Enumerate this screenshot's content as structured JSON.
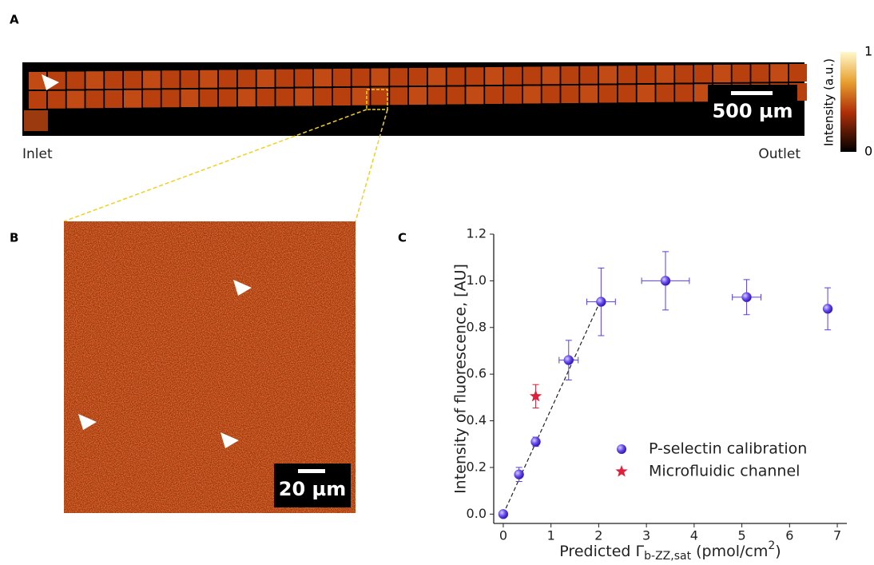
{
  "panel_a": {
    "label": "A",
    "inlet": "Inlet",
    "outlet": "Outlet",
    "scale_bar": "500 µm",
    "colorbar": {
      "title": "Intensity (a.u.)",
      "max": 1,
      "min": 0
    }
  },
  "panel_b": {
    "label": "B",
    "scale_bar": "20 µm"
  },
  "panel_c": {
    "label": "C"
  },
  "chart_data": {
    "type": "scatter",
    "x_label_parts": [
      "Predicted Γ",
      "b-ZZ,sat",
      " (pmol/cm",
      "2",
      ")"
    ],
    "y_label": "Intensity of fluorescence, [AU]",
    "xlim": [
      -0.2,
      7.2
    ],
    "ylim": [
      -0.04,
      1.2
    ],
    "xticks": [
      0,
      1,
      2,
      3,
      4,
      5,
      6,
      7
    ],
    "yticks": [
      {
        "value": 0,
        "label": "0.0"
      },
      0.2,
      0.4,
      0.6,
      0.8,
      {
        "value": 1,
        "label": "1.0"
      },
      1.2
    ],
    "series": [
      {
        "name": "P-selectin calibration",
        "color": "#5b3fe6",
        "marker": "circle",
        "x": [
          0,
          0.33,
          0.68,
          1.37,
          2.05,
          3.4,
          5.1,
          6.8
        ],
        "values": [
          0,
          0.17,
          0.31,
          0.66,
          0.91,
          1.0,
          0.93,
          0.88
        ],
        "xerr": [
          0,
          0.05,
          0.06,
          0.2,
          0.3,
          0.5,
          0.3,
          0.05
        ],
        "yerr": [
          0,
          0.03,
          0.02,
          0.085,
          0.145,
          0.125,
          0.075,
          0.09
        ]
      },
      {
        "name": "Microfluidic channel",
        "color": "#e0203a",
        "marker": "star",
        "x": [
          0.68
        ],
        "values": [
          0.505
        ],
        "xerr": [
          0
        ],
        "yerr": [
          0.05
        ]
      }
    ],
    "fit_line": {
      "x": [
        0,
        2.07
      ],
      "values": [
        0,
        0.93
      ]
    }
  }
}
